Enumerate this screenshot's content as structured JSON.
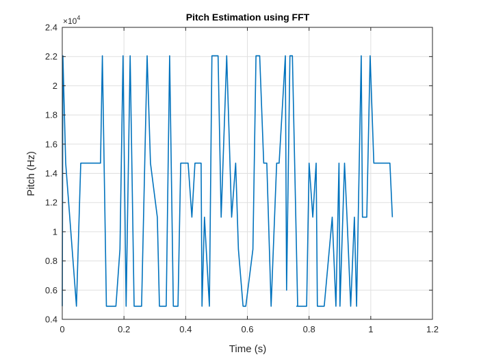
{
  "chart_data": {
    "type": "line",
    "title": "Pitch Estimation using FFT",
    "xlabel": "Time (s)",
    "ylabel": "Pitch (Hz)",
    "y_exponent_label": "×10",
    "y_exponent_power": "4",
    "xlim": [
      0,
      1.2
    ],
    "ylim": [
      4000,
      24000
    ],
    "x_ticks": [
      0,
      0.2,
      0.4,
      0.6,
      0.8,
      1.0,
      1.2
    ],
    "x_tick_labels": [
      "0",
      "0.2",
      "0.4",
      "0.6",
      "0.8",
      "1",
      "1.2"
    ],
    "y_ticks": [
      4000,
      6000,
      8000,
      10000,
      12000,
      14000,
      16000,
      18000,
      20000,
      22000,
      24000
    ],
    "y_tick_labels": [
      "0.4",
      "0.6",
      "0.8",
      "1",
      "1.2",
      "1.4",
      "1.6",
      "1.8",
      "2",
      "2.2",
      "2.4"
    ],
    "grid": true,
    "line_color": "#0072BD",
    "series": [
      {
        "x": [
          0.0,
          0.002,
          0.011,
          0.046,
          0.06,
          0.124,
          0.13,
          0.143,
          0.174,
          0.187,
          0.197,
          0.207,
          0.22,
          0.233,
          0.257,
          0.275,
          0.286,
          0.308,
          0.315,
          0.337,
          0.348,
          0.36,
          0.375,
          0.384,
          0.408,
          0.42,
          0.43,
          0.45,
          0.453,
          0.461,
          0.477,
          0.485,
          0.505,
          0.515,
          0.533,
          0.549,
          0.562,
          0.571,
          0.586,
          0.595,
          0.618,
          0.628,
          0.64,
          0.653,
          0.663,
          0.677,
          0.695,
          0.703,
          0.723,
          0.727,
          0.738,
          0.746,
          0.763,
          0.76,
          0.779,
          0.792,
          0.8,
          0.812,
          0.823,
          0.827,
          0.835,
          0.849,
          0.875,
          0.887,
          0.897,
          0.9,
          0.915,
          0.923,
          0.935,
          0.947,
          0.954,
          0.969,
          0.973,
          0.987,
          0.998,
          1.01,
          1.025,
          1.03,
          1.062,
          1.07
        ],
        "y": [
          4900,
          22050,
          14700,
          4900,
          14700,
          14700,
          22050,
          4900,
          4900,
          8800,
          22050,
          4900,
          22050,
          4900,
          4900,
          22050,
          14700,
          11000,
          4900,
          4900,
          22050,
          4900,
          4900,
          14700,
          14700,
          11000,
          14700,
          14700,
          4900,
          11000,
          4900,
          22050,
          22050,
          11000,
          22050,
          11000,
          14700,
          8800,
          4900,
          4900,
          8800,
          22050,
          22050,
          14700,
          14700,
          4900,
          14700,
          14700,
          22050,
          6000,
          22050,
          22050,
          4900,
          4900,
          4900,
          4900,
          14700,
          11000,
          14700,
          4900,
          4900,
          4900,
          11000,
          4900,
          14700,
          4900,
          14700,
          11000,
          4900,
          11000,
          4900,
          22050,
          11000,
          11000,
          22050,
          14700,
          14700,
          14700,
          14700,
          11000
        ]
      }
    ]
  }
}
